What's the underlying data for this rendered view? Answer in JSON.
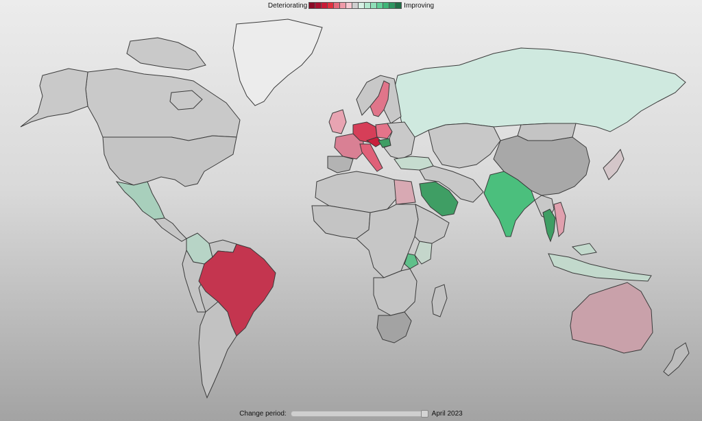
{
  "legend": {
    "deteriorating_label": "Deteriorating",
    "improving_label": "Improving",
    "colors": [
      "#8b0a26",
      "#a8102f",
      "#c81b37",
      "#e0303f",
      "#e5697c",
      "#ef9aa8",
      "#f6c9d1",
      "#cfcfcf",
      "#d6f0e4",
      "#b3e8cf",
      "#8fdfb8",
      "#62cf98",
      "#3fb577",
      "#2d9460",
      "#1f6e46"
    ]
  },
  "slider": {
    "label": "Change period:",
    "value_label": "April 2023",
    "position": 1.0
  },
  "map": {
    "default_fill": "#c6c6c6",
    "regions": [
      {
        "name": "greenland",
        "fill": "#ececec"
      },
      {
        "name": "canada",
        "fill": "#c9c9c9"
      },
      {
        "name": "alaska",
        "fill": "#c9c9c9"
      },
      {
        "name": "united-states",
        "fill": "#c4c4c4"
      },
      {
        "name": "mexico",
        "fill": "#a8cfbc"
      },
      {
        "name": "central-america",
        "fill": "#c6c6c6"
      },
      {
        "name": "colombia",
        "fill": "#b7d4c6"
      },
      {
        "name": "south-america-west",
        "fill": "#c4c4c4"
      },
      {
        "name": "brazil",
        "fill": "#c4354f"
      },
      {
        "name": "argentina",
        "fill": "#c2c2c2"
      },
      {
        "name": "russia",
        "fill": "#cfe9df"
      },
      {
        "name": "sweden",
        "fill": "#e0758a"
      },
      {
        "name": "scandinavia",
        "fill": "#c8c8c8"
      },
      {
        "name": "uk",
        "fill": "#e8a4b2"
      },
      {
        "name": "france",
        "fill": "#d98094"
      },
      {
        "name": "germany",
        "fill": "#d63e58"
      },
      {
        "name": "poland",
        "fill": "#e4748a"
      },
      {
        "name": "italy",
        "fill": "#e06078"
      },
      {
        "name": "spain",
        "fill": "#b3b3b3"
      },
      {
        "name": "austria",
        "fill": "#c81f3c"
      },
      {
        "name": "hungary",
        "fill": "#3f9e64"
      },
      {
        "name": "eastern-europe",
        "fill": "#c9c9c9"
      },
      {
        "name": "turkey",
        "fill": "#c6dccf"
      },
      {
        "name": "central-asia",
        "fill": "#c8c8c8"
      },
      {
        "name": "china",
        "fill": "#a8a8a8"
      },
      {
        "name": "mongolia",
        "fill": "#c4c4c4"
      },
      {
        "name": "india",
        "fill": "#4bbf7d"
      },
      {
        "name": "thailand",
        "fill": "#3f9e64"
      },
      {
        "name": "vietnam",
        "fill": "#e0a0ae"
      },
      {
        "name": "southeast-asia",
        "fill": "#c8c8c8"
      },
      {
        "name": "indonesia",
        "fill": "#c2d9cc"
      },
      {
        "name": "japan",
        "fill": "#d4c6c9"
      },
      {
        "name": "australia",
        "fill": "#c9a1aa"
      },
      {
        "name": "new-zealand",
        "fill": "#bcbcbc"
      },
      {
        "name": "north-africa",
        "fill": "#c6c6c6"
      },
      {
        "name": "egypt",
        "fill": "#d8a9b3"
      },
      {
        "name": "saudi-arabia",
        "fill": "#3f9e64"
      },
      {
        "name": "middle-east",
        "fill": "#c8c8c8"
      },
      {
        "name": "west-africa",
        "fill": "#c4c4c4"
      },
      {
        "name": "central-africa",
        "fill": "#c6c6c6"
      },
      {
        "name": "east-africa",
        "fill": "#c6c6c6"
      },
      {
        "name": "kenya",
        "fill": "#c4d6cb"
      },
      {
        "name": "tanzania",
        "fill": "#5fc08a"
      },
      {
        "name": "southern-africa",
        "fill": "#c4c4c4"
      },
      {
        "name": "south-africa",
        "fill": "#a3a3a3"
      },
      {
        "name": "madagascar",
        "fill": "#c2c2c2"
      }
    ]
  }
}
